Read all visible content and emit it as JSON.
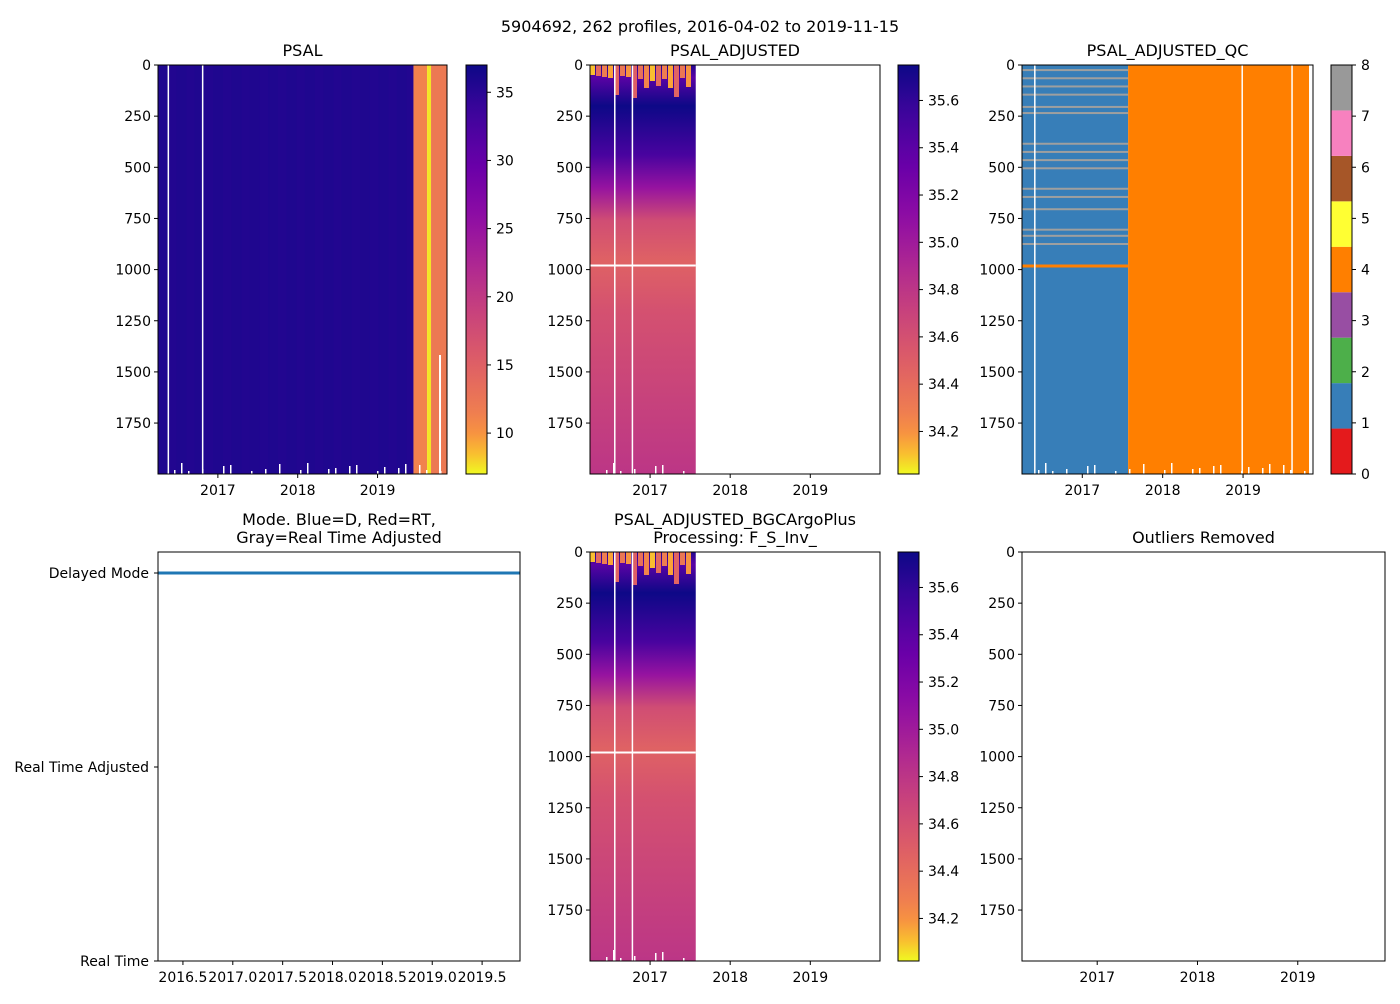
{
  "figure": {
    "suptitle": "5904692, 262 profiles, 2016-04-02 to 2019-11-15"
  },
  "colors": {
    "delayed_mode_line": "#1f77b4",
    "qc_1": "#377eb8",
    "qc_4": "#ff7f00",
    "qc_noise": "#b8a898"
  },
  "chart_data": [
    {
      "id": "psal",
      "type": "heatmap",
      "title": "PSAL",
      "xlabel": "",
      "ylabel": "",
      "x_range": [
        2016.25,
        2019.87
      ],
      "ylim": [
        1999,
        0
      ],
      "xticks": [
        "2017",
        "2018",
        "2019"
      ],
      "yticks": [
        "0",
        "250",
        "500",
        "750",
        "1000",
        "1250",
        "1500",
        "1750"
      ],
      "colormap": "plasma_r",
      "colorbar": {
        "range": [
          7.0,
          37.0
        ],
        "ticks": [
          "10",
          "15",
          "20",
          "25",
          "30",
          "35"
        ]
      },
      "data_extent": [
        2016.25,
        2019.87
      ],
      "bands": [
        {
          "from": 2016.25,
          "to": 2019.45,
          "value": 35.5
        },
        {
          "from": 2019.45,
          "to": 2019.62,
          "value": 11.0
        },
        {
          "from": 2019.62,
          "to": 2019.67,
          "value": 7.5
        },
        {
          "from": 2019.67,
          "to": 2019.87,
          "value": 12.0
        }
      ],
      "gaps": [
        2016.37,
        2016.8
      ]
    },
    {
      "id": "psal_adjusted",
      "type": "heatmap",
      "title": "PSAL_ADJUSTED",
      "xlabel": "",
      "ylabel": "",
      "x_range": [
        2016.25,
        2019.87
      ],
      "ylim": [
        1999,
        0
      ],
      "xticks": [
        "2017",
        "2018",
        "2019"
      ],
      "yticks": [
        "0",
        "250",
        "500",
        "750",
        "1000",
        "1250",
        "1500",
        "1750"
      ],
      "colormap": "plasma_r",
      "colorbar": {
        "range": [
          34.02,
          35.75
        ],
        "ticks": [
          "34.2",
          "34.4",
          "34.6",
          "34.8",
          "35.0",
          "35.2",
          "35.4",
          "35.6"
        ]
      },
      "data_extent": [
        2016.25,
        2017.57
      ],
      "gaps": [
        2016.55,
        2016.77
      ],
      "white_line_depth": 980
    },
    {
      "id": "psal_adjusted_qc",
      "type": "heatmap",
      "title": "PSAL_ADJUSTED_QC",
      "xlabel": "",
      "ylabel": "",
      "x_range": [
        2016.25,
        2019.87
      ],
      "ylim": [
        1999,
        0
      ],
      "xticks": [
        "2017",
        "2018",
        "2019"
      ],
      "yticks": [
        "0",
        "250",
        "500",
        "750",
        "1000",
        "1250",
        "1500",
        "1750"
      ],
      "colormap": "Set1",
      "colorbar": {
        "range": [
          0,
          8
        ],
        "ticks": [
          "0",
          "1",
          "2",
          "3",
          "4",
          "5",
          "6",
          "7",
          "8"
        ],
        "bins": [
          "#e41a1c",
          "#377eb8",
          "#4daf4a",
          "#984ea3",
          "#ff7f00",
          "#ffff33",
          "#a65628",
          "#f781bf",
          "#999999"
        ]
      },
      "regions": [
        {
          "from": 2016.25,
          "to": 2017.57,
          "flag": 1
        },
        {
          "from": 2017.57,
          "to": 2019.87,
          "flag": 4
        }
      ],
      "orange_line_depth": 980,
      "gaps": [
        2016.4,
        2018.98,
        2019.6
      ]
    },
    {
      "id": "mode",
      "type": "line",
      "title": "Mode. Blue=D, Red=RT,\nGray=Real Time Adjusted",
      "xlabel": "",
      "ylabel": "",
      "xlim": [
        2016.25,
        2019.88
      ],
      "xticks": [
        2016.5,
        2017.0,
        2017.5,
        2018.0,
        2018.5,
        2019.0,
        2019.5
      ],
      "xtick_labels": [
        "2016.5",
        "2017.0",
        "2017.5",
        "2018.0",
        "2018.5",
        "2019.0",
        "2019.5"
      ],
      "yticks": [
        "Delayed Mode",
        "Real Time Adjusted",
        "Real Time"
      ],
      "series": [
        {
          "name": "Delayed Mode",
          "x": [
            2016.25,
            2019.88
          ],
          "y": [
            2,
            2
          ],
          "color": "#1f77b4"
        }
      ]
    },
    {
      "id": "psal_adjusted_bgcargoplus",
      "type": "heatmap",
      "title": "PSAL_ADJUSTED_BGCArgoPlus\nProcessing: F_S_Inv_",
      "xlabel": "",
      "ylabel": "",
      "x_range": [
        2016.25,
        2019.87
      ],
      "ylim": [
        1999,
        0
      ],
      "xticks": [
        "2017",
        "2018",
        "2019"
      ],
      "yticks": [
        "0",
        "250",
        "500",
        "750",
        "1000",
        "1250",
        "1500",
        "1750"
      ],
      "colormap": "plasma_r",
      "colorbar": {
        "range": [
          34.02,
          35.75
        ],
        "ticks": [
          "34.2",
          "34.4",
          "34.6",
          "34.8",
          "35.0",
          "35.2",
          "35.4",
          "35.6"
        ]
      },
      "data_extent": [
        2016.25,
        2017.57
      ],
      "gaps": [
        2016.55,
        2016.77
      ],
      "white_line_depth": 980
    },
    {
      "id": "outliers",
      "type": "heatmap",
      "title": "Outliers Removed",
      "xlabel": "",
      "ylabel": "",
      "x_range": [
        2016.25,
        2019.87
      ],
      "ylim": [
        1999,
        0
      ],
      "xticks": [
        "2017",
        "2018",
        "2019"
      ],
      "yticks": [
        "0",
        "250",
        "500",
        "750",
        "1000",
        "1250",
        "1500",
        "1750"
      ],
      "colorbar": null
    }
  ]
}
